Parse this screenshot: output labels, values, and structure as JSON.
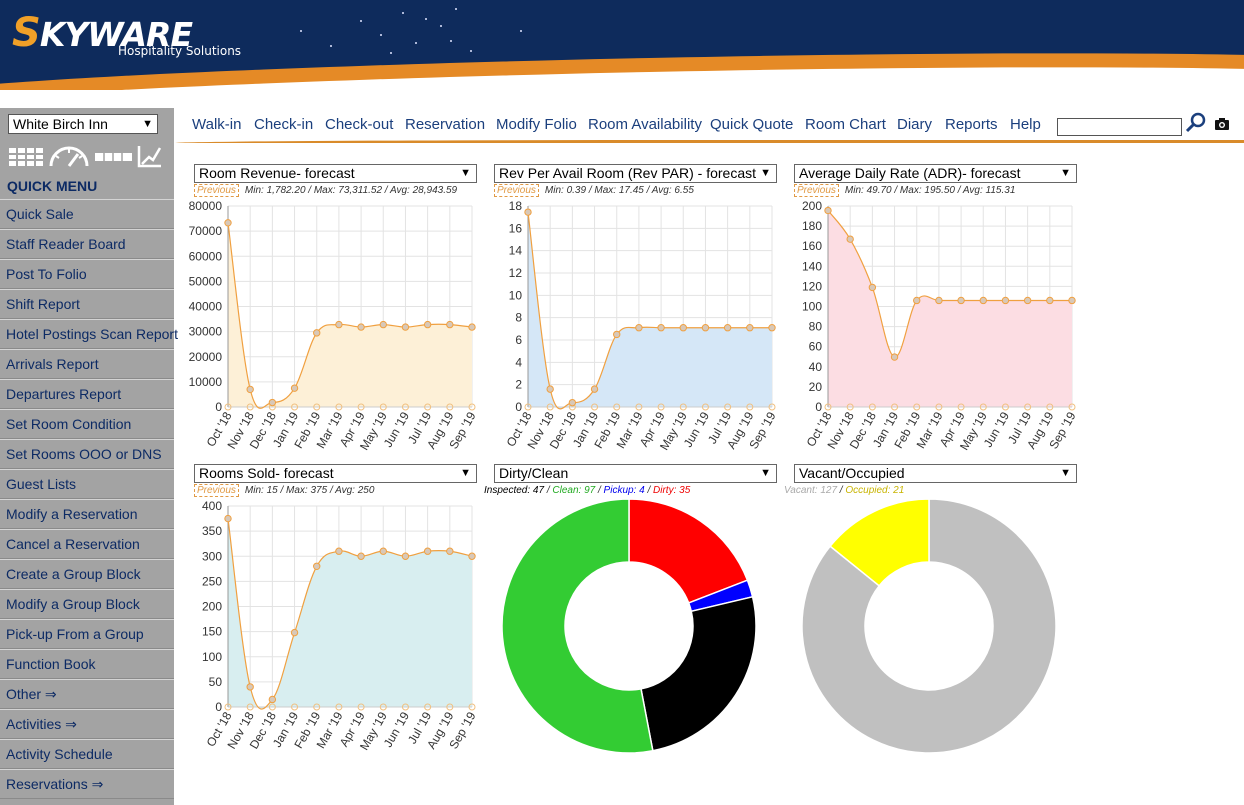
{
  "header": {
    "brand_letter": "S",
    "brand_rest": "KYWARE",
    "subtitle": "Hospitality Solutions"
  },
  "sidebar": {
    "hotel_selected": "White Birch Inn",
    "quick_menu_title": "QUICK MENU",
    "icons": [
      "grid-icon",
      "speedometer-icon",
      "bar-icon",
      "chart-icon"
    ],
    "items": [
      {
        "label": "Quick Sale"
      },
      {
        "label": "Staff Reader Board"
      },
      {
        "label": "Post To Folio"
      },
      {
        "label": "Shift Report"
      },
      {
        "label": "Hotel Postings Scan Report"
      },
      {
        "label": "Arrivals Report"
      },
      {
        "label": "Departures Report"
      },
      {
        "label": "Set Room Condition"
      },
      {
        "label": "Set Rooms OOO or DNS"
      },
      {
        "label": "Guest Lists"
      },
      {
        "label": "Modify a Reservation"
      },
      {
        "label": "Cancel a Reservation"
      },
      {
        "label": "Create a Group Block"
      },
      {
        "label": "Modify a Group Block"
      },
      {
        "label": "Pick-up From a Group"
      },
      {
        "label": "Function Book"
      },
      {
        "label": "Other ⇒"
      },
      {
        "label": "Activities ⇒"
      },
      {
        "label": "Activity Schedule"
      },
      {
        "label": "Reservations ⇒"
      }
    ]
  },
  "topnav": {
    "items": [
      {
        "label": "Walk-in"
      },
      {
        "label": "Check-in"
      },
      {
        "label": "Check-out"
      },
      {
        "label": "Reservation"
      },
      {
        "label": "Modify Folio"
      },
      {
        "label": "Room Availability"
      },
      {
        "label": "Quick Quote"
      },
      {
        "label": "Room Chart"
      },
      {
        "label": "Diary"
      },
      {
        "label": "Reports"
      },
      {
        "label": "Help"
      }
    ],
    "search_value": ""
  },
  "previous_label": "Previous",
  "months": [
    "Oct '18",
    "Nov '18",
    "Dec '18",
    "Jan '19",
    "Feb '19",
    "Mar '19",
    "Apr '19",
    "May '19",
    "Jun '19",
    "Jul '19",
    "Aug '19",
    "Sep '19"
  ],
  "chart_data": [
    {
      "type": "area",
      "select_label": "Room Revenue- forecast",
      "stats": "Min: 1,782.20 / Max: 73,311.52 / Avg: 28,943.59",
      "x": [
        "Oct '18",
        "Nov '18",
        "Dec '18",
        "Jan '19",
        "Feb '19",
        "Mar '19",
        "Apr '19",
        "May '19",
        "Jun '19",
        "Jul '19",
        "Aug '19",
        "Sep '19"
      ],
      "values": [
        73311.52,
        7000,
        1782.2,
        7500,
        29500,
        32800,
        31800,
        32800,
        31800,
        32800,
        32800,
        31800
      ],
      "ylim": [
        0,
        80000
      ],
      "yticks": [
        0,
        10000,
        20000,
        30000,
        40000,
        50000,
        60000,
        70000,
        80000
      ],
      "fill": "#fdf0d7",
      "grid": true
    },
    {
      "type": "area",
      "select_label": "Rev Per Avail Room (Rev PAR) - forecast",
      "stats": "Min: 0.39 / Max: 17.45 / Avg: 6.55",
      "x": [
        "Oct '18",
        "Nov '18",
        "Dec '18",
        "Jan '19",
        "Feb '19",
        "Mar '19",
        "Apr '19",
        "May '19",
        "Jun '19",
        "Jul '19",
        "Aug '19",
        "Sep '19"
      ],
      "values": [
        17.45,
        1.6,
        0.39,
        1.6,
        6.5,
        7.1,
        7.1,
        7.1,
        7.1,
        7.1,
        7.1,
        7.1
      ],
      "ylim": [
        0,
        18
      ],
      "yticks": [
        0,
        2,
        4,
        6,
        8,
        10,
        12,
        14,
        16,
        18
      ],
      "fill": "#d5e7f7",
      "grid": true
    },
    {
      "type": "area",
      "select_label": "Average Daily Rate (ADR)- forecast",
      "stats": "Min: 49.70 / Max: 195.50 / Avg: 115.31",
      "x": [
        "Oct '18",
        "Nov '18",
        "Dec '18",
        "Jan '19",
        "Feb '19",
        "Mar '19",
        "Apr '19",
        "May '19",
        "Jun '19",
        "Jul '19",
        "Aug '19",
        "Sep '19"
      ],
      "values": [
        195.5,
        167,
        119,
        49.7,
        106,
        106,
        106,
        106,
        106,
        106,
        106,
        106
      ],
      "ylim": [
        0,
        200
      ],
      "yticks": [
        0,
        20,
        40,
        60,
        80,
        100,
        120,
        140,
        160,
        180,
        200
      ],
      "fill": "#fcdde3",
      "grid": true
    },
    {
      "type": "area",
      "select_label": "Rooms Sold- forecast",
      "stats": "Min: 15 / Max: 375 / Avg: 250",
      "x": [
        "Oct '18",
        "Nov '18",
        "Dec '18",
        "Jan '19",
        "Feb '19",
        "Mar '19",
        "Apr '19",
        "May '19",
        "Jun '19",
        "Jul '19",
        "Aug '19",
        "Sep '19"
      ],
      "values": [
        375,
        40,
        15,
        148,
        280,
        310,
        300,
        310,
        300,
        310,
        310,
        300
      ],
      "ylim": [
        0,
        400
      ],
      "yticks": [
        0,
        50,
        100,
        150,
        200,
        250,
        300,
        350,
        400
      ],
      "fill": "#d8eef0",
      "grid": true
    },
    {
      "type": "pie",
      "select_label": "Dirty/Clean",
      "legend": [
        {
          "label": "Inspected: 47",
          "color": "#000000"
        },
        {
          "label": "Clean: 97",
          "color": "#22aa22"
        },
        {
          "label": "Pickup: 4",
          "color": "#0000ee"
        },
        {
          "label": "Dirty: 35",
          "color": "#ee0000"
        }
      ],
      "slices": [
        {
          "name": "Dirty",
          "value": 35,
          "color": "#ff0000"
        },
        {
          "name": "Pickup",
          "value": 4,
          "color": "#0000ff"
        },
        {
          "name": "Inspected",
          "value": 47,
          "color": "#000000"
        },
        {
          "name": "Clean",
          "value": 97,
          "color": "#33cc33"
        }
      ]
    },
    {
      "type": "pie",
      "select_label": "Vacant/Occupied",
      "legend": [
        {
          "label": "Vacant: 127",
          "color": "#aaaaaa"
        },
        {
          "label": "Occupied: 21",
          "color": "#c8b400"
        }
      ],
      "slices": [
        {
          "name": "Vacant",
          "value": 127,
          "color": "#c0c0c0"
        },
        {
          "name": "Occupied",
          "value": 21,
          "color": "#ffff00"
        }
      ]
    }
  ]
}
